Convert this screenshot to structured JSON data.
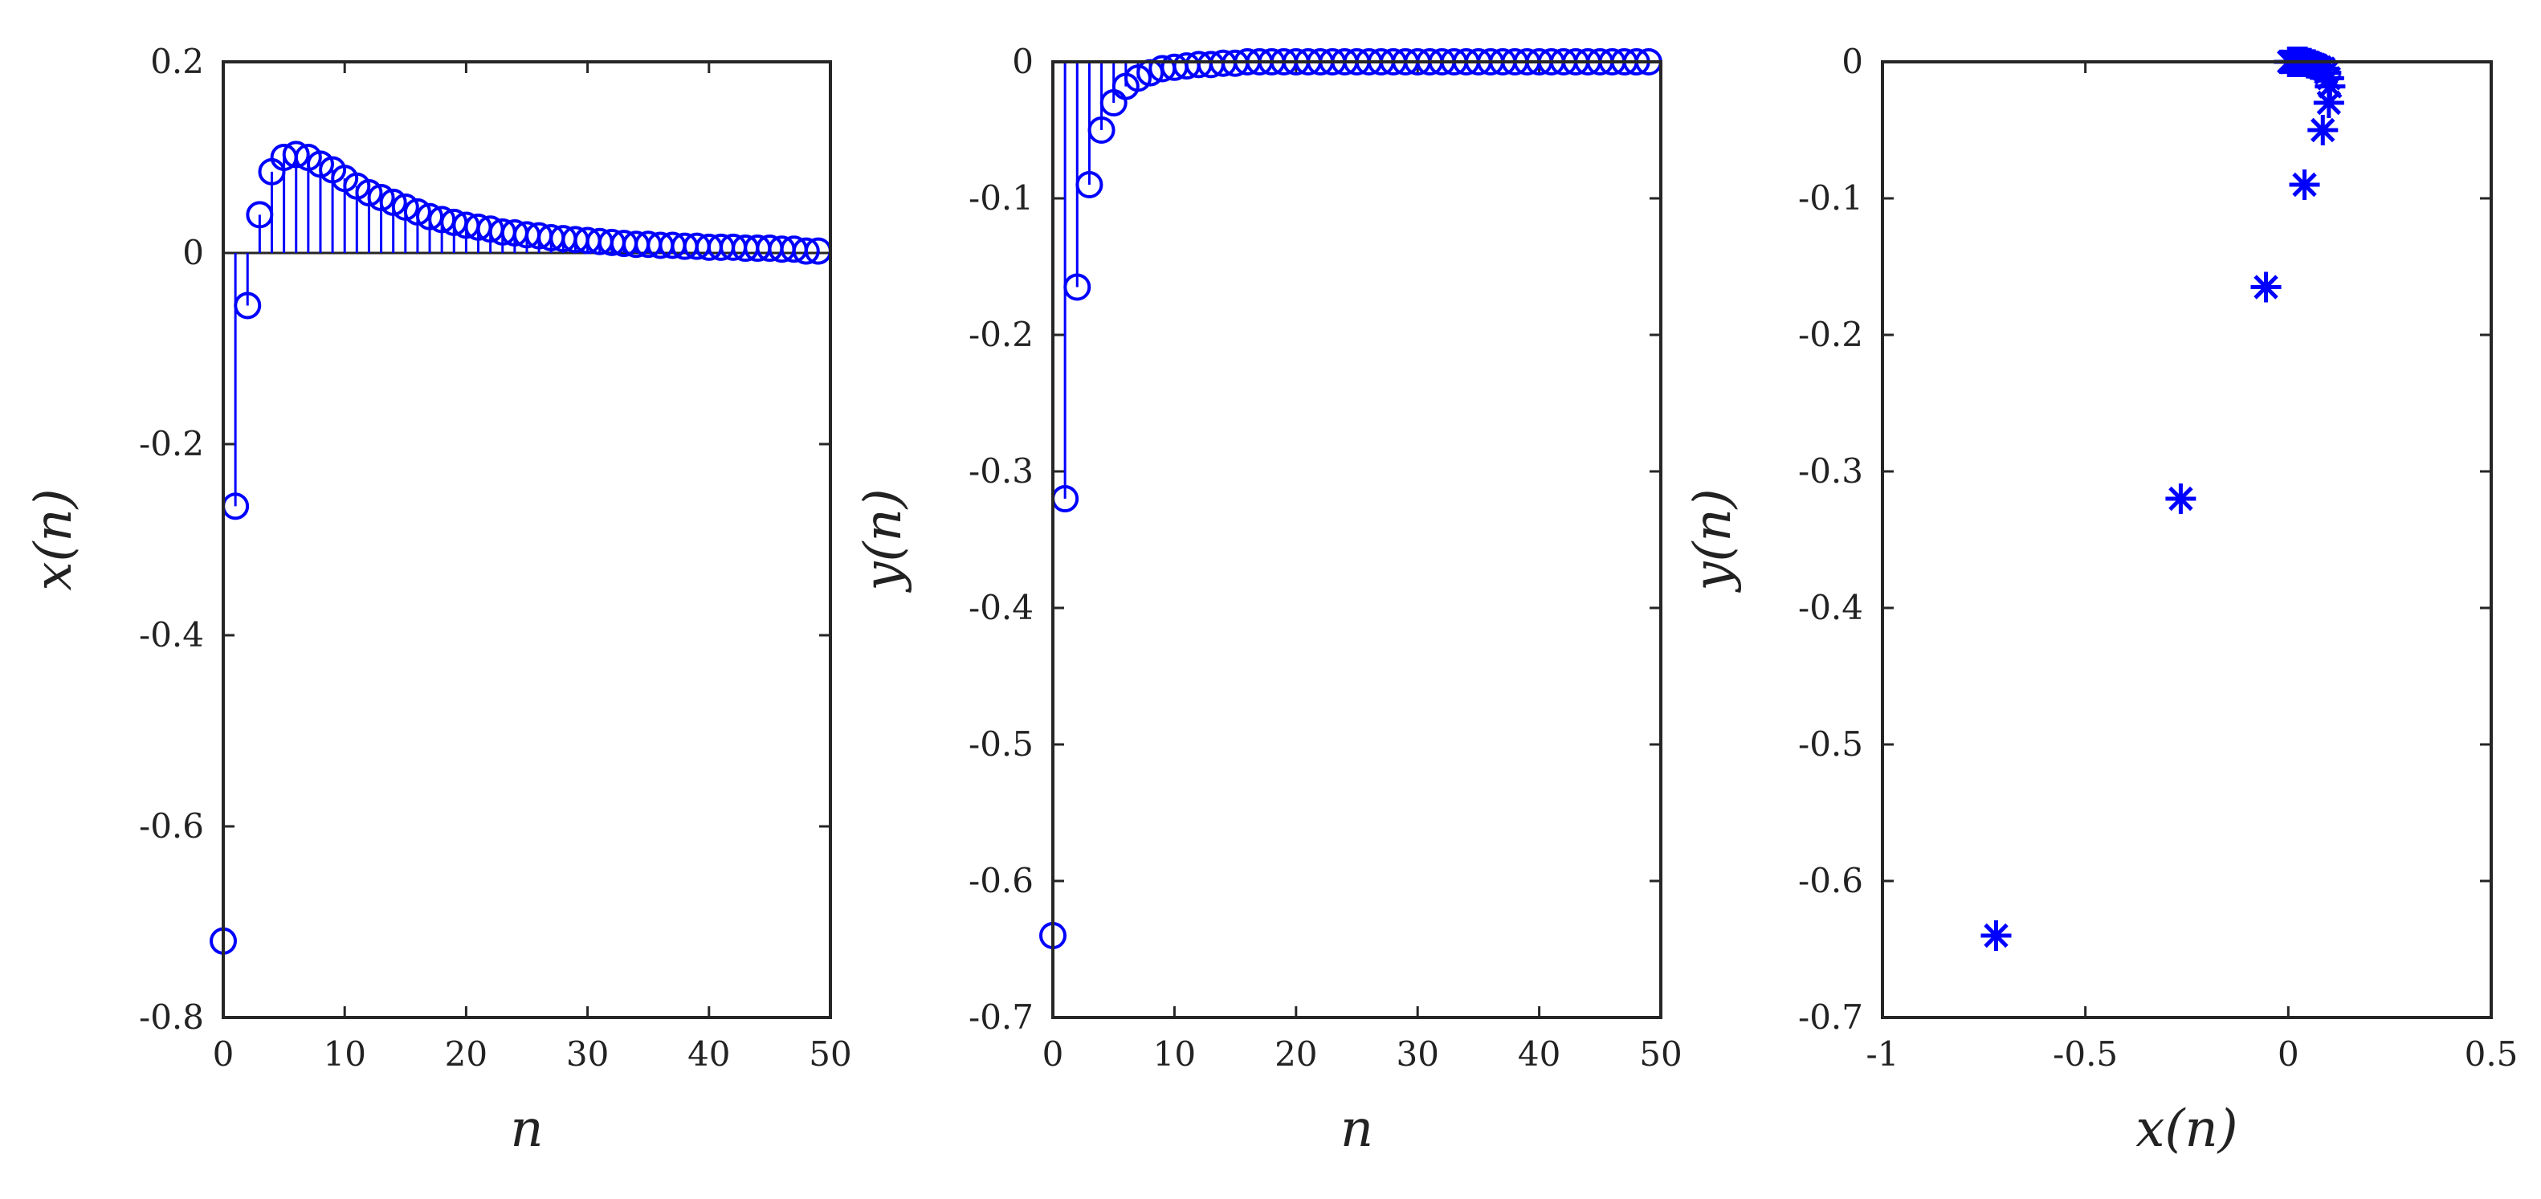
{
  "colors": {
    "series": "#0000ff",
    "axes": "#262626"
  },
  "chart_data": [
    {
      "type": "stem",
      "marker": "circle",
      "xlabel": "n",
      "ylabel": "x(n)",
      "xlim": [
        0,
        50
      ],
      "ylim": [
        -0.8,
        0.2
      ],
      "xticks": [
        0,
        10,
        20,
        30,
        40,
        50
      ],
      "xtick_labels": [
        "0",
        "10",
        "20",
        "30",
        "40",
        "50"
      ],
      "yticks": [
        0.2,
        0,
        -0.2,
        -0.4,
        -0.6,
        -0.8
      ],
      "ytick_labels": [
        "0.2",
        "0",
        "-0.2",
        "-0.4",
        "-0.6",
        "-0.8"
      ],
      "grid": false,
      "x": [
        0,
        1,
        2,
        3,
        4,
        5,
        6,
        7,
        8,
        9,
        10,
        11,
        12,
        13,
        14,
        15,
        16,
        17,
        18,
        19,
        20,
        21,
        22,
        23,
        24,
        25,
        26,
        27,
        28,
        29,
        30,
        31,
        32,
        33,
        34,
        35,
        36,
        37,
        38,
        39,
        40,
        41,
        42,
        43,
        44,
        45,
        46,
        47,
        48,
        49
      ],
      "values": [
        -0.72,
        -0.265,
        -0.055,
        0.04,
        0.085,
        0.1,
        0.103,
        0.1,
        0.093,
        0.087,
        0.078,
        0.07,
        0.063,
        0.058,
        0.053,
        0.048,
        0.043,
        0.038,
        0.035,
        0.032,
        0.029,
        0.027,
        0.025,
        0.022,
        0.021,
        0.019,
        0.018,
        0.016,
        0.015,
        0.014,
        0.013,
        0.012,
        0.011,
        0.01,
        0.009,
        0.009,
        0.008,
        0.008,
        0.007,
        0.007,
        0.006,
        0.006,
        0.006,
        0.005,
        0.005,
        0.005,
        0.004,
        0.004,
        0.002,
        0.002
      ]
    },
    {
      "type": "stem",
      "marker": "circle",
      "xlabel": "n",
      "ylabel": "y(n)",
      "xlim": [
        0,
        50
      ],
      "ylim": [
        -0.7,
        0
      ],
      "xticks": [
        0,
        10,
        20,
        30,
        40,
        50
      ],
      "xtick_labels": [
        "0",
        "10",
        "20",
        "30",
        "40",
        "50"
      ],
      "yticks": [
        0,
        -0.1,
        -0.2,
        -0.3,
        -0.4,
        -0.5,
        -0.6,
        -0.7
      ],
      "ytick_labels": [
        "0",
        "-0.1",
        "-0.2",
        "-0.3",
        "-0.4",
        "-0.5",
        "-0.6",
        "-0.7"
      ],
      "grid": false,
      "x": [
        0,
        1,
        2,
        3,
        4,
        5,
        6,
        7,
        8,
        9,
        10,
        11,
        12,
        13,
        14,
        15,
        16,
        17,
        18,
        19,
        20,
        21,
        22,
        23,
        24,
        25,
        26,
        27,
        28,
        29,
        30,
        31,
        32,
        33,
        34,
        35,
        36,
        37,
        38,
        39,
        40,
        41,
        42,
        43,
        44,
        45,
        46,
        47,
        48,
        49
      ],
      "values": [
        -0.64,
        -0.32,
        -0.165,
        -0.09,
        -0.05,
        -0.03,
        -0.018,
        -0.012,
        -0.008,
        -0.005,
        -0.004,
        -0.003,
        -0.002,
        -0.002,
        -0.001,
        -0.001,
        0,
        0,
        0,
        0,
        0,
        0,
        0,
        0,
        0,
        0,
        0,
        0,
        0,
        0,
        0,
        0,
        0,
        0,
        0,
        0,
        0,
        0,
        0,
        0,
        0,
        0,
        0,
        0,
        0,
        0,
        0,
        0,
        0,
        0
      ]
    },
    {
      "type": "scatter",
      "marker": "asterisk",
      "xlabel": "x(n)",
      "ylabel": "y(n)",
      "xlim": [
        -1,
        0.5
      ],
      "ylim": [
        -0.7,
        0
      ],
      "xticks": [
        -1,
        -0.5,
        0,
        0.5
      ],
      "xtick_labels": [
        "-1",
        "-0.5",
        "0",
        "0.5"
      ],
      "yticks": [
        0,
        -0.1,
        -0.2,
        -0.3,
        -0.4,
        -0.5,
        -0.6,
        -0.7
      ],
      "ytick_labels": [
        "0",
        "-0.1",
        "-0.2",
        "-0.3",
        "-0.4",
        "-0.5",
        "-0.6",
        "-0.7"
      ],
      "grid": false,
      "points": [
        [
          -0.72,
          -0.64
        ],
        [
          -0.265,
          -0.32
        ],
        [
          -0.055,
          -0.165
        ],
        [
          0.04,
          -0.09
        ],
        [
          0.085,
          -0.05
        ],
        [
          0.1,
          -0.03
        ],
        [
          0.103,
          -0.018
        ],
        [
          0.1,
          -0.012
        ],
        [
          0.093,
          -0.008
        ],
        [
          0.087,
          -0.005
        ],
        [
          0.078,
          -0.004
        ],
        [
          0.07,
          -0.003
        ],
        [
          0.063,
          -0.002
        ],
        [
          0.058,
          -0.002
        ],
        [
          0.053,
          -0.001
        ],
        [
          0.048,
          -0.001
        ],
        [
          0.043,
          0
        ],
        [
          0.038,
          0
        ],
        [
          0.035,
          0
        ],
        [
          0.032,
          0
        ],
        [
          0.029,
          0
        ],
        [
          0.027,
          0
        ],
        [
          0.025,
          0
        ],
        [
          0.022,
          0
        ],
        [
          0.021,
          0
        ],
        [
          0.019,
          0
        ],
        [
          0.018,
          0
        ],
        [
          0.016,
          0
        ],
        [
          0.015,
          0
        ],
        [
          0.014,
          0
        ],
        [
          0.013,
          0
        ],
        [
          0.012,
          0
        ],
        [
          0.011,
          0
        ],
        [
          0.01,
          0
        ],
        [
          0.009,
          0
        ],
        [
          0.009,
          0
        ],
        [
          0.008,
          0
        ],
        [
          0.008,
          0
        ],
        [
          0.007,
          0
        ],
        [
          0.007,
          0
        ],
        [
          0.006,
          0
        ],
        [
          0.006,
          0
        ],
        [
          0.006,
          0
        ],
        [
          0.005,
          0
        ],
        [
          0.005,
          0
        ],
        [
          0.005,
          0
        ],
        [
          0.004,
          0
        ],
        [
          0.004,
          0
        ],
        [
          0.002,
          0
        ],
        [
          0.002,
          0
        ]
      ]
    }
  ]
}
